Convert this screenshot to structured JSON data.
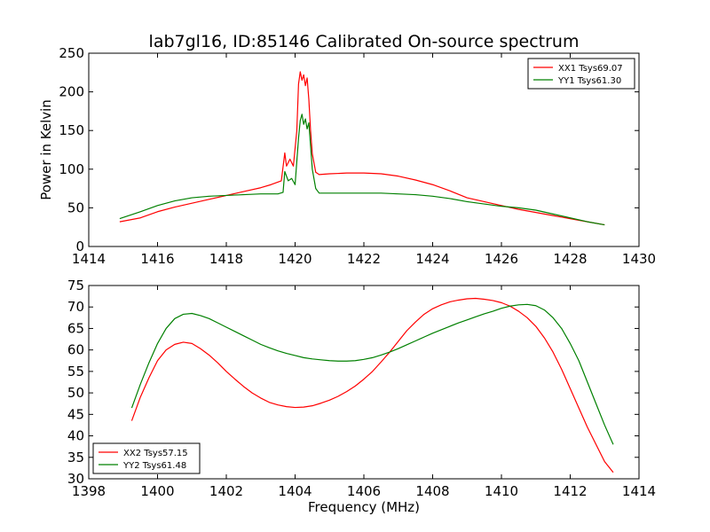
{
  "chart_data": [
    {
      "type": "line",
      "title": "lab7gl16, ID:85146 Calibrated On-source spectrum",
      "xlabel": "",
      "ylabel": "Power in Kelvin",
      "xlim": [
        1414,
        1430
      ],
      "ylim": [
        0,
        250
      ],
      "xticks": [
        1414,
        1416,
        1418,
        1420,
        1422,
        1424,
        1426,
        1428,
        1430
      ],
      "yticks": [
        0,
        50,
        100,
        150,
        200,
        250
      ],
      "grid": false,
      "legend_position": "upper right",
      "series": [
        {
          "name": "XX1 Tsys69.07",
          "color": "#ff0000",
          "x": [
            1414.9,
            1415.5,
            1416,
            1416.5,
            1417,
            1417.5,
            1418,
            1418.5,
            1419,
            1419.3,
            1419.6,
            1419.7,
            1419.75,
            1419.85,
            1419.95,
            1420.05,
            1420.1,
            1420.15,
            1420.2,
            1420.25,
            1420.3,
            1420.35,
            1420.4,
            1420.45,
            1420.5,
            1420.6,
            1420.7,
            1421,
            1421.5,
            1422,
            1422.5,
            1423,
            1423.5,
            1424,
            1424.5,
            1425,
            1425.5,
            1426,
            1426.5,
            1427,
            1427.5,
            1428,
            1428.5,
            1429
          ],
          "y": [
            32,
            37,
            45,
            51,
            56,
            61,
            66,
            71,
            76,
            80,
            85,
            121,
            104,
            113,
            104,
            150,
            210,
            226,
            215,
            222,
            208,
            218,
            190,
            150,
            120,
            96,
            93,
            94,
            95,
            95,
            94,
            91,
            86,
            80,
            72,
            63,
            58,
            53,
            48,
            44,
            40,
            36,
            32,
            28
          ]
        },
        {
          "name": "YY1 Tsys61.30",
          "color": "#008000",
          "x": [
            1414.9,
            1415.5,
            1416,
            1416.5,
            1417,
            1417.5,
            1418,
            1418.5,
            1419,
            1419.5,
            1419.65,
            1419.7,
            1419.8,
            1419.9,
            1420,
            1420.1,
            1420.15,
            1420.2,
            1420.25,
            1420.3,
            1420.35,
            1420.4,
            1420.45,
            1420.5,
            1420.6,
            1420.7,
            1421,
            1421.5,
            1422,
            1422.5,
            1423,
            1423.5,
            1424,
            1424.5,
            1425,
            1425.5,
            1426,
            1426.5,
            1427,
            1427.5,
            1428,
            1428.5,
            1429
          ],
          "y": [
            36,
            45,
            53,
            59,
            63,
            65,
            66,
            67,
            68,
            68,
            70,
            97,
            85,
            88,
            80,
            140,
            163,
            171,
            158,
            165,
            152,
            160,
            130,
            100,
            75,
            69,
            69,
            69,
            69,
            69,
            68,
            67,
            65,
            62,
            58,
            55,
            52,
            50,
            47,
            42,
            37,
            32,
            28
          ]
        }
      ]
    },
    {
      "type": "line",
      "title": "",
      "xlabel": "Frequency (MHz)",
      "ylabel": "",
      "xlim": [
        1398,
        1414
      ],
      "ylim": [
        30,
        75
      ],
      "xticks": [
        1398,
        1400,
        1402,
        1404,
        1406,
        1408,
        1410,
        1412,
        1414
      ],
      "yticks": [
        30,
        35,
        40,
        45,
        50,
        55,
        60,
        65,
        70,
        75
      ],
      "grid": false,
      "legend_position": "lower left",
      "series": [
        {
          "name": "XX2 Tsys57.15",
          "color": "#ff0000",
          "x": [
            1399.25,
            1399.5,
            1399.75,
            1400,
            1400.25,
            1400.5,
            1400.75,
            1401,
            1401.25,
            1401.5,
            1401.75,
            1402,
            1402.25,
            1402.5,
            1402.75,
            1403,
            1403.25,
            1403.5,
            1403.75,
            1404,
            1404.25,
            1404.5,
            1404.75,
            1405,
            1405.25,
            1405.5,
            1405.75,
            1406,
            1406.25,
            1406.5,
            1406.75,
            1407,
            1407.25,
            1407.5,
            1407.75,
            1408,
            1408.25,
            1408.5,
            1408.75,
            1409,
            1409.25,
            1409.5,
            1409.75,
            1410,
            1410.25,
            1410.5,
            1410.75,
            1411,
            1411.25,
            1411.5,
            1411.75,
            1412,
            1412.25,
            1412.5,
            1412.75,
            1413,
            1413.25
          ],
          "y": [
            43.5,
            49,
            53.5,
            57.5,
            60,
            61.3,
            61.8,
            61.5,
            60.3,
            58.8,
            57,
            55,
            53.2,
            51.5,
            50,
            48.8,
            47.8,
            47.2,
            46.8,
            46.6,
            46.7,
            47,
            47.6,
            48.3,
            49.2,
            50.3,
            51.6,
            53.2,
            55,
            57.2,
            59.5,
            62,
            64.5,
            66.5,
            68.3,
            69.6,
            70.5,
            71.2,
            71.6,
            71.9,
            72,
            71.8,
            71.5,
            71,
            70.2,
            69,
            67.5,
            65.5,
            62.8,
            59.5,
            55.5,
            51,
            46.5,
            42,
            38,
            34,
            31.5
          ]
        },
        {
          "name": "YY2 Tsys61.48",
          "color": "#008000",
          "x": [
            1399.25,
            1399.5,
            1399.75,
            1400,
            1400.25,
            1400.5,
            1400.75,
            1401,
            1401.25,
            1401.5,
            1401.75,
            1402,
            1402.25,
            1402.5,
            1402.75,
            1403,
            1403.25,
            1403.5,
            1403.75,
            1404,
            1404.25,
            1404.5,
            1404.75,
            1405,
            1405.25,
            1405.5,
            1405.75,
            1406,
            1406.25,
            1406.5,
            1406.75,
            1407,
            1407.25,
            1407.5,
            1407.75,
            1408,
            1408.25,
            1408.5,
            1408.75,
            1409,
            1409.25,
            1409.5,
            1409.75,
            1410,
            1410.25,
            1410.5,
            1410.75,
            1411,
            1411.25,
            1411.5,
            1411.75,
            1412,
            1412.25,
            1412.5,
            1412.75,
            1413,
            1413.25
          ],
          "y": [
            46.5,
            52,
            57,
            61.5,
            65,
            67.3,
            68.3,
            68.5,
            68,
            67.3,
            66.3,
            65.3,
            64.3,
            63.3,
            62.3,
            61.3,
            60.5,
            59.8,
            59.2,
            58.7,
            58.2,
            57.9,
            57.7,
            57.5,
            57.4,
            57.4,
            57.5,
            57.8,
            58.2,
            58.8,
            59.5,
            60.3,
            61.2,
            62.1,
            63,
            63.9,
            64.7,
            65.5,
            66.3,
            67,
            67.7,
            68.4,
            69,
            69.7,
            70.2,
            70.5,
            70.6,
            70.3,
            69.3,
            67.5,
            65,
            61.5,
            57.5,
            52.5,
            47.5,
            42.5,
            38
          ]
        }
      ]
    }
  ]
}
